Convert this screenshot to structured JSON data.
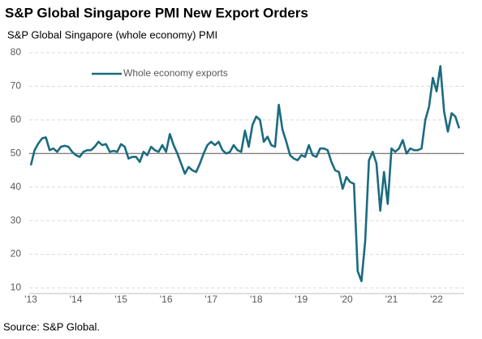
{
  "chart_data": {
    "type": "line",
    "title": "S&P Global Singapore PMI New Export Orders",
    "subtitle": "S&P Global Singapore (whole economy) PMI",
    "source": "Source: S&P Global.",
    "categories": [
      "'13",
      null,
      null,
      null,
      null,
      null,
      null,
      null,
      null,
      null,
      null,
      null,
      "'14",
      null,
      null,
      null,
      null,
      null,
      null,
      null,
      null,
      null,
      null,
      null,
      "'15",
      null,
      null,
      null,
      null,
      null,
      null,
      null,
      null,
      null,
      null,
      null,
      "'16",
      null,
      null,
      null,
      null,
      null,
      null,
      null,
      null,
      null,
      null,
      null,
      "'17",
      null,
      null,
      null,
      null,
      null,
      null,
      null,
      null,
      null,
      null,
      null,
      "'18",
      null,
      null,
      null,
      null,
      null,
      null,
      null,
      null,
      null,
      null,
      null,
      "'19",
      null,
      null,
      null,
      null,
      null,
      null,
      null,
      null,
      null,
      null,
      null,
      "'20",
      null,
      null,
      null,
      null,
      null,
      null,
      null,
      null,
      null,
      null,
      null,
      "'21",
      null,
      null,
      null,
      null,
      null,
      null,
      null,
      null,
      null,
      null,
      null,
      "'22",
      null,
      null,
      null,
      null,
      null,
      null
    ],
    "series": [
      {
        "name": "Whole economy exports",
        "color": "#1b6b7f",
        "values": [
          46.5,
          51,
          53,
          54.5,
          54.8,
          51,
          51.5,
          50.5,
          52,
          52.3,
          52,
          50.5,
          49.5,
          49,
          50.5,
          51,
          51,
          52,
          53.5,
          52.5,
          52.8,
          50.5,
          50.8,
          50.5,
          52.8,
          52,
          48.5,
          49,
          49,
          47.5,
          50.5,
          49.5,
          52,
          51,
          50.5,
          52.5,
          50.5,
          55.8,
          52.5,
          50,
          47,
          44,
          46,
          45,
          44.5,
          47,
          50,
          52.5,
          53.5,
          52.5,
          53.5,
          51,
          50,
          50.5,
          52.5,
          51,
          50.5,
          56.8,
          52,
          58.5,
          61,
          60,
          53.5,
          55,
          52.5,
          52,
          64.5,
          57,
          53.5,
          49.5,
          48.5,
          48,
          49.5,
          49,
          52.5,
          49.5,
          49,
          51.5,
          51.5,
          51,
          47.5,
          45,
          44.5,
          39.5,
          43,
          41.5,
          41,
          15,
          12,
          24,
          48,
          50.5,
          47,
          33,
          44.5,
          35,
          51.5,
          50.5,
          51.5,
          54,
          50,
          51.5,
          51,
          51,
          51.5,
          60,
          64,
          72.5,
          68.5,
          76,
          62.5,
          56.5,
          62,
          61,
          57.5
        ]
      }
    ],
    "ylim": [
      10,
      80
    ],
    "yticks": [
      10,
      20,
      30,
      40,
      50,
      60,
      70,
      80
    ],
    "reference_line": 50,
    "grid": true,
    "legend": "top-left"
  }
}
